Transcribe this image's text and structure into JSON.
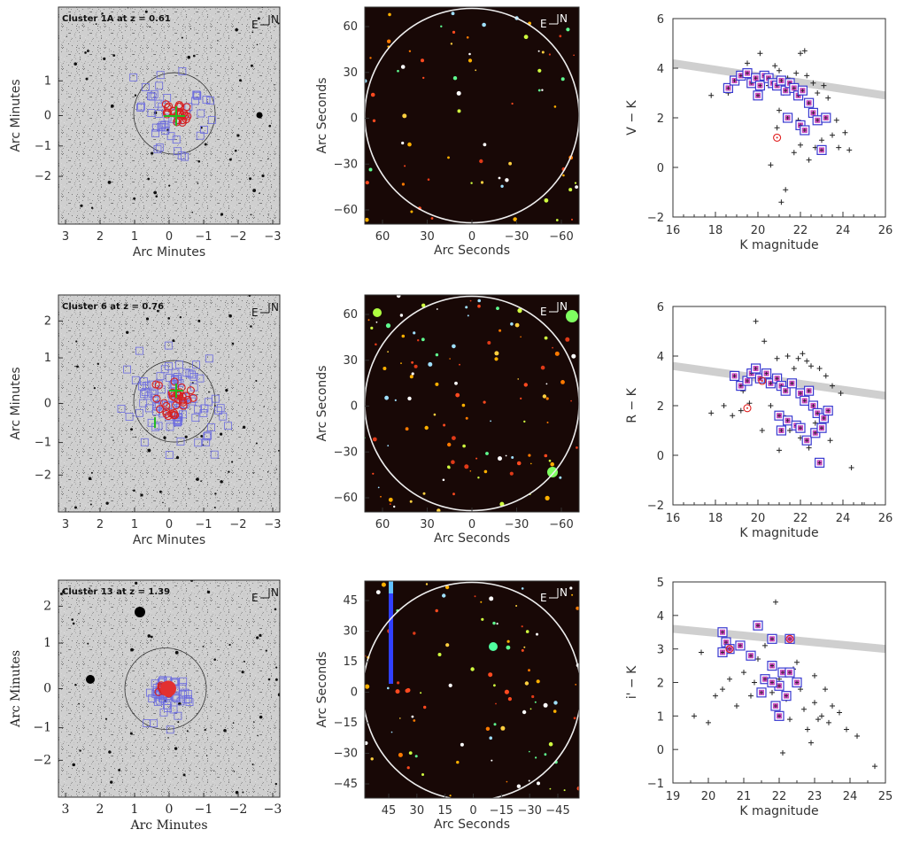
{
  "figure": {
    "compass": {
      "east": "E",
      "north": "N"
    },
    "rows": [
      {
        "sky": {
          "label": "Cluster 1A at z = 0.61",
          "xlabel": "Arc Minutes",
          "ylabel": "Arc Minutes",
          "xticks": [
            "3",
            "2",
            "1",
            "0",
            "−1",
            "−2",
            "−3"
          ],
          "yticks": [
            "1",
            "0",
            "−1",
            "−2"
          ]
        },
        "color": {
          "xlabel": "Arc Seconds",
          "ylabel": "Arc Seconds",
          "xticks": [
            "60",
            "30",
            "0",
            "−30",
            "−60"
          ],
          "yticks": [
            "60",
            "30",
            "0",
            "−30",
            "−60"
          ]
        },
        "cmd": {
          "xlabel": "K magnitude",
          "ylabel": "V − K",
          "xlim": [
            16,
            26
          ],
          "ylim": [
            -2,
            6
          ],
          "xticks": [
            "16",
            "18",
            "20",
            "22",
            "24",
            "26"
          ],
          "yticks": [
            "6",
            "4",
            "2",
            "0",
            "−2"
          ]
        }
      },
      {
        "sky": {
          "label": "Cluster 6 at z = 0.76",
          "xlabel": "Arc Minutes",
          "ylabel": "Arc Minutes",
          "xticks": [
            "3",
            "2",
            "1",
            "0",
            "−1",
            "−2",
            "−3"
          ],
          "yticks": [
            "2",
            "1",
            "0",
            "−1",
            "−2"
          ]
        },
        "color": {
          "xlabel": "Arc Seconds",
          "ylabel": "Arc Seconds",
          "xticks": [
            "60",
            "30",
            "0",
            "−30",
            "−60"
          ],
          "yticks": [
            "60",
            "30",
            "0",
            "−30",
            "−60"
          ]
        },
        "cmd": {
          "xlabel": "K magnitude",
          "ylabel": "R − K",
          "xlim": [
            16,
            26
          ],
          "ylim": [
            -2,
            6
          ],
          "xticks": [
            "16",
            "18",
            "20",
            "22",
            "24",
            "26"
          ],
          "yticks": [
            "6",
            "4",
            "2",
            "0",
            "−2"
          ]
        }
      },
      {
        "sky": {
          "label": "Cluster 13 at z = 1.39",
          "xlabel": "Arc Minutes",
          "ylabel": "Arc Minutes",
          "xticks": [
            "3",
            "2",
            "1",
            "0",
            "−1",
            "−2",
            "−3"
          ],
          "yticks": [
            "2",
            "1",
            "0",
            "−1",
            "−2"
          ]
        },
        "color": {
          "xlabel": "Arc Seconds",
          "ylabel": "Arc Seconds",
          "xticks": [
            "45",
            "30",
            "15",
            "0",
            "−15",
            "−30",
            "−45"
          ],
          "yticks": [
            "45",
            "30",
            "15",
            "0",
            "−15",
            "−30",
            "−45"
          ]
        },
        "cmd": {
          "xlabel": "K magnitude",
          "ylabel": "i' − K",
          "xlim": [
            19,
            25
          ],
          "ylim": [
            -1,
            5
          ],
          "xticks": [
            "19",
            "20",
            "21",
            "22",
            "23",
            "24",
            "25"
          ],
          "yticks": [
            "5",
            "4",
            "3",
            "2",
            "1",
            "0",
            "−1"
          ]
        }
      }
    ]
  },
  "chart_data": [
    {
      "type": "scatter",
      "title": "",
      "xlabel": "K magnitude",
      "ylabel": "V − K",
      "xlim": [
        16,
        26
      ],
      "ylim": [
        -2,
        6
      ],
      "red_sequence": {
        "x": [
          16,
          26
        ],
        "y": [
          4.2,
          2.9
        ]
      },
      "series": [
        {
          "name": "field (+)",
          "points": [
            [
              17.8,
              2.9
            ],
            [
              18.6,
              3.0
            ],
            [
              19.5,
              4.2
            ],
            [
              20.1,
              4.6
            ],
            [
              20.5,
              3.3
            ],
            [
              20.8,
              4.1
            ],
            [
              21.0,
              3.9
            ],
            [
              21.2,
              3.0
            ],
            [
              21.4,
              3.6
            ],
            [
              21.8,
              3.8
            ],
            [
              22.0,
              4.6
            ],
            [
              22.2,
              4.7
            ],
            [
              22.3,
              3.7
            ],
            [
              22.6,
              3.4
            ],
            [
              22.8,
              3.0
            ],
            [
              23.1,
              3.3
            ],
            [
              23.3,
              2.8
            ],
            [
              23.7,
              1.9
            ],
            [
              24.1,
              1.4
            ],
            [
              24.3,
              0.7
            ],
            [
              20.6,
              0.1
            ],
            [
              20.9,
              1.6
            ],
            [
              21.1,
              -1.4
            ],
            [
              21.3,
              -0.9
            ],
            [
              21.7,
              0.6
            ],
            [
              22.0,
              0.9
            ],
            [
              22.4,
              0.3
            ],
            [
              22.7,
              0.8
            ],
            [
              23.0,
              1.1
            ],
            [
              23.5,
              1.3
            ],
            [
              23.8,
              0.8
            ],
            [
              21.0,
              2.3
            ],
            [
              21.9,
              1.9
            ],
            [
              22.5,
              2.2
            ]
          ]
        },
        {
          "name": "members (□)",
          "points": [
            [
              18.6,
              3.2
            ],
            [
              18.9,
              3.5
            ],
            [
              19.2,
              3.7
            ],
            [
              19.5,
              3.8
            ],
            [
              19.7,
              3.4
            ],
            [
              19.9,
              3.6
            ],
            [
              20.1,
              3.3
            ],
            [
              20.3,
              3.7
            ],
            [
              20.5,
              3.6
            ],
            [
              20.7,
              3.4
            ],
            [
              20.9,
              3.3
            ],
            [
              21.1,
              3.5
            ],
            [
              21.3,
              3.1
            ],
            [
              21.5,
              3.4
            ],
            [
              21.7,
              3.2
            ],
            [
              21.9,
              2.9
            ],
            [
              22.1,
              3.1
            ],
            [
              22.4,
              2.6
            ],
            [
              22.6,
              2.2
            ],
            [
              22.8,
              1.9
            ],
            [
              23.2,
              2.0
            ],
            [
              20.0,
              2.9
            ],
            [
              21.4,
              2.0
            ],
            [
              22.0,
              1.7
            ],
            [
              22.2,
              1.5
            ],
            [
              23.0,
              0.7
            ]
          ]
        },
        {
          "name": "spectroscopic (⊙)",
          "points": [
            [
              20.9,
              1.2
            ]
          ]
        }
      ]
    },
    {
      "type": "scatter",
      "title": "",
      "xlabel": "K magnitude",
      "ylabel": "R − K",
      "xlim": [
        16,
        26
      ],
      "ylim": [
        -2,
        6
      ],
      "red_sequence": {
        "x": [
          16,
          26
        ],
        "y": [
          3.6,
          2.4
        ]
      },
      "series": [
        {
          "name": "field (+)",
          "points": [
            [
              17.8,
              1.7
            ],
            [
              18.4,
              2.0
            ],
            [
              18.8,
              1.6
            ],
            [
              19.2,
              1.8
            ],
            [
              19.6,
              2.1
            ],
            [
              19.9,
              5.4
            ],
            [
              20.3,
              4.6
            ],
            [
              20.6,
              2.0
            ],
            [
              20.9,
              3.9
            ],
            [
              21.2,
              1.6
            ],
            [
              21.4,
              4.0
            ],
            [
              21.7,
              3.5
            ],
            [
              21.9,
              3.9
            ],
            [
              22.1,
              4.1
            ],
            [
              22.3,
              3.8
            ],
            [
              22.5,
              3.6
            ],
            [
              22.9,
              3.5
            ],
            [
              23.2,
              3.2
            ],
            [
              23.5,
              2.8
            ],
            [
              23.9,
              2.5
            ],
            [
              21.0,
              0.2
            ],
            [
              21.5,
              1.0
            ],
            [
              22.0,
              0.7
            ],
            [
              22.4,
              0.3
            ],
            [
              22.7,
              1.3
            ],
            [
              23.4,
              0.6
            ],
            [
              24.4,
              -0.5
            ],
            [
              24.9,
              -2.0
            ],
            [
              20.2,
              1.0
            ],
            [
              19.3,
              2.6
            ]
          ]
        },
        {
          "name": "members (□)",
          "points": [
            [
              18.9,
              3.2
            ],
            [
              19.2,
              2.8
            ],
            [
              19.5,
              3.0
            ],
            [
              19.7,
              3.3
            ],
            [
              19.9,
              3.5
            ],
            [
              20.1,
              3.1
            ],
            [
              20.4,
              3.3
            ],
            [
              20.6,
              2.9
            ],
            [
              20.9,
              3.1
            ],
            [
              21.1,
              2.8
            ],
            [
              21.3,
              2.6
            ],
            [
              21.6,
              2.9
            ],
            [
              22.0,
              2.5
            ],
            [
              22.2,
              2.2
            ],
            [
              22.4,
              2.6
            ],
            [
              22.6,
              2.0
            ],
            [
              22.8,
              1.7
            ],
            [
              23.1,
              1.5
            ],
            [
              23.3,
              1.8
            ],
            [
              21.0,
              1.6
            ],
            [
              21.4,
              1.4
            ],
            [
              21.8,
              1.2
            ],
            [
              22.0,
              1.1
            ],
            [
              22.3,
              0.6
            ],
            [
              22.7,
              0.9
            ],
            [
              23.0,
              1.1
            ],
            [
              22.9,
              -0.3
            ],
            [
              21.1,
              1.0
            ]
          ]
        },
        {
          "name": "spectroscopic (⊙)",
          "points": [
            [
              19.5,
              1.9
            ],
            [
              20.2,
              3.0
            ]
          ]
        }
      ]
    },
    {
      "type": "scatter",
      "title": "",
      "xlabel": "K magnitude",
      "ylabel": "i' − K",
      "xlim": [
        19,
        25
      ],
      "ylim": [
        -1,
        5
      ],
      "red_sequence": {
        "x": [
          19,
          25
        ],
        "y": [
          3.6,
          3.0
        ]
      },
      "series": [
        {
          "name": "field (+)",
          "points": [
            [
              19.6,
              1.0
            ],
            [
              19.8,
              2.9
            ],
            [
              20.0,
              0.8
            ],
            [
              20.2,
              1.6
            ],
            [
              20.4,
              1.8
            ],
            [
              20.6,
              2.1
            ],
            [
              20.8,
              1.3
            ],
            [
              21.0,
              2.3
            ],
            [
              21.2,
              1.6
            ],
            [
              21.4,
              2.7
            ],
            [
              21.6,
              3.1
            ],
            [
              21.8,
              1.7
            ],
            [
              21.9,
              4.4
            ],
            [
              22.0,
              2.1
            ],
            [
              22.2,
              1.5
            ],
            [
              22.3,
              0.9
            ],
            [
              22.4,
              2.4
            ],
            [
              22.6,
              1.8
            ],
            [
              22.7,
              1.2
            ],
            [
              22.8,
              0.6
            ],
            [
              22.9,
              0.2
            ],
            [
              23.0,
              1.4
            ],
            [
              23.1,
              0.9
            ],
            [
              23.2,
              1.0
            ],
            [
              23.3,
              1.8
            ],
            [
              23.4,
              0.8
            ],
            [
              23.5,
              1.3
            ],
            [
              23.7,
              1.1
            ],
            [
              23.9,
              0.6
            ],
            [
              24.2,
              0.4
            ],
            [
              24.7,
              -0.5
            ],
            [
              21.3,
              2.0
            ],
            [
              22.1,
              -0.1
            ],
            [
              22.5,
              2.6
            ],
            [
              23.0,
              2.2
            ]
          ]
        },
        {
          "name": "members (□)",
          "points": [
            [
              20.4,
              3.5
            ],
            [
              20.5,
              3.2
            ],
            [
              20.6,
              3.0
            ],
            [
              20.4,
              2.9
            ],
            [
              20.9,
              3.1
            ],
            [
              21.2,
              2.8
            ],
            [
              21.4,
              3.7
            ],
            [
              21.8,
              3.3
            ],
            [
              22.3,
              3.3
            ],
            [
              21.6,
              2.1
            ],
            [
              21.8,
              2.5
            ],
            [
              22.1,
              2.3
            ],
            [
              22.3,
              2.3
            ],
            [
              22.0,
              1.9
            ],
            [
              22.2,
              1.6
            ],
            [
              22.5,
              2.0
            ],
            [
              21.5,
              1.7
            ],
            [
              21.9,
              1.3
            ],
            [
              22.0,
              1.0
            ],
            [
              21.8,
              2.0
            ]
          ]
        },
        {
          "name": "spectroscopic (⊙)",
          "points": [
            [
              22.3,
              3.3
            ],
            [
              20.6,
              3.0
            ]
          ]
        }
      ]
    }
  ]
}
